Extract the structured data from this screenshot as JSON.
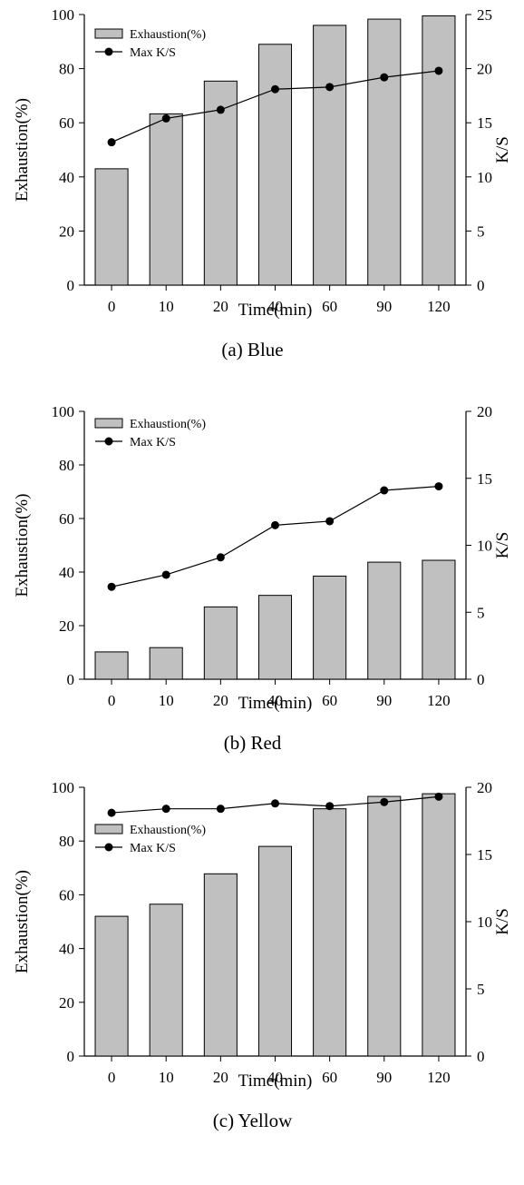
{
  "chart_data": [
    {
      "type": "bar+line",
      "caption": "(a) Blue",
      "categories": [
        "0",
        "10",
        "20",
        "40",
        "60",
        "90",
        "120"
      ],
      "series": [
        {
          "name": "Exhaustion(%)",
          "type": "bar",
          "axis": "left",
          "values": [
            43,
            63.3,
            75.4,
            89,
            96,
            98.3,
            99.5
          ]
        },
        {
          "name": "Max K/S",
          "type": "line",
          "axis": "right",
          "values": [
            13.2,
            15.4,
            16.2,
            18.1,
            18.3,
            19.2,
            19.8
          ]
        }
      ],
      "xlabel": "Time(min)",
      "ylabel": "Exhaustion(%)",
      "y2label": "K/S",
      "ylim": [
        0,
        100
      ],
      "y2lim": [
        0,
        25
      ],
      "yticks": [
        "0",
        "20",
        "40",
        "60",
        "80",
        "100"
      ],
      "y2ticks": [
        "0",
        "5",
        "10",
        "15",
        "20",
        "25"
      ],
      "legend": "top-left",
      "grid": false
    },
    {
      "type": "bar+line",
      "caption": "(b) Red",
      "categories": [
        "0",
        "10",
        "20",
        "40",
        "60",
        "90",
        "120"
      ],
      "series": [
        {
          "name": "Exhaustion(%)",
          "type": "bar",
          "axis": "left",
          "values": [
            10.2,
            11.8,
            27,
            31.3,
            38.5,
            43.7,
            44.4
          ]
        },
        {
          "name": "Max K/S",
          "type": "line",
          "axis": "right",
          "values": [
            6.9,
            7.8,
            9.1,
            11.5,
            11.8,
            14.1,
            14.4
          ]
        }
      ],
      "xlabel": "Time(min)",
      "ylabel": "Exhaustion(%)",
      "y2label": "K/S",
      "ylim": [
        0,
        100
      ],
      "y2lim": [
        0,
        20
      ],
      "yticks": [
        "0",
        "20",
        "40",
        "60",
        "80",
        "100"
      ],
      "y2ticks": [
        "0",
        "5",
        "10",
        "15",
        "20"
      ],
      "legend": "top-left",
      "grid": false
    },
    {
      "type": "bar+line",
      "caption": "(c) Yellow",
      "categories": [
        "0",
        "10",
        "20",
        "40",
        "60",
        "90",
        "120"
      ],
      "series": [
        {
          "name": "Exhaustion(%)",
          "type": "bar",
          "axis": "left",
          "values": [
            52,
            56.5,
            67.8,
            78,
            92,
            96.6,
            97.6
          ]
        },
        {
          "name": "Max K/S",
          "type": "line",
          "axis": "right",
          "values": [
            18.1,
            18.4,
            18.4,
            18.8,
            18.6,
            18.9,
            19.3
          ]
        }
      ],
      "xlabel": "Time(min)",
      "ylabel": "Exhaustion(%)",
      "y2label": "K/S",
      "ylim": [
        0,
        100
      ],
      "y2lim": [
        0,
        20
      ],
      "yticks": [
        "0",
        "20",
        "40",
        "60",
        "80",
        "100"
      ],
      "y2ticks": [
        "0",
        "5",
        "10",
        "15",
        "20"
      ],
      "legend": "top-left",
      "grid": false
    }
  ],
  "colors": {
    "bar_fill": "#c0c0c0",
    "stroke": "#000000"
  }
}
